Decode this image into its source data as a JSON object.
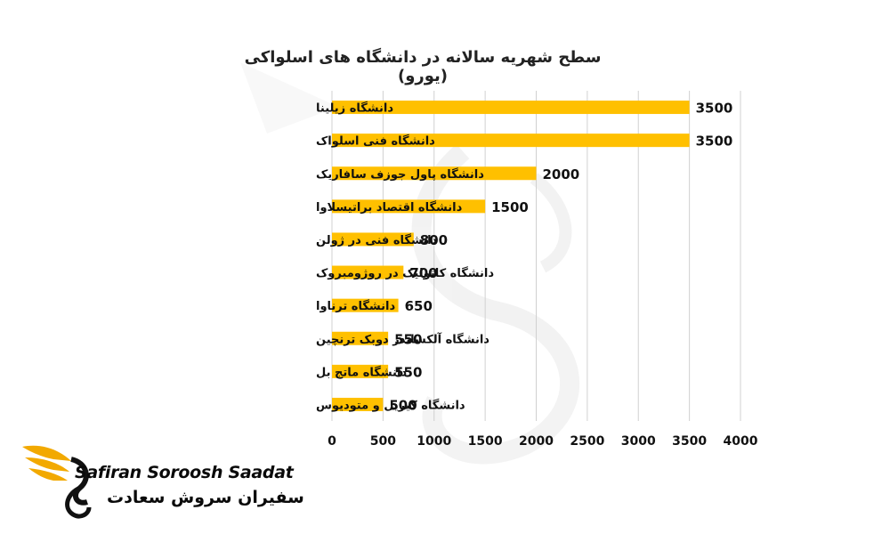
{
  "brand": {
    "name_en": "Safiran Soroosh Saadat",
    "name_fa": "سفیران سروش سعادت"
  },
  "chart_data": {
    "type": "bar",
    "orientation": "horizontal",
    "title": "سطح شهریه سالانه در دانشگاه های اسلواکی (یورو)",
    "categories": [
      "دانشگاه زیلینا",
      "دانشگاه فنی اسلواک",
      "دانشگاه پاول جوزف سافاریک",
      "دانشگاه اقتصاد براتیسلاوا",
      "دانشگاه فنی در ژولن",
      "دانشگاه کاتولیک در روژومبروک",
      "دانشگاه ترناوا",
      "دانشگاه آلکساندر دوبک ترنچین",
      "دانشگاه ماتج بل",
      "دانشگاه کیریل و متودیوس"
    ],
    "values": [
      3500,
      3500,
      2000,
      1500,
      800,
      700,
      650,
      550,
      550,
      500
    ],
    "xlim": [
      0,
      4000
    ],
    "xticks": [
      0,
      500,
      1000,
      1500,
      2000,
      2500,
      3000,
      3500,
      4000
    ],
    "grid": true,
    "bar_color": "#FFC000",
    "grid_color": "#d0d0d0"
  }
}
